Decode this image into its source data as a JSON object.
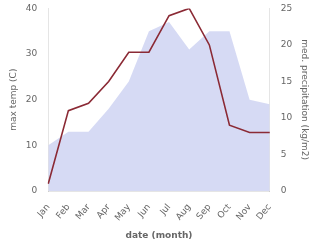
{
  "chart_data": {
    "type": "line",
    "xlabel": "date (month)",
    "ylabel": "max temp (C)",
    "y2label": "med. precipitation (kg/m2)",
    "categories": [
      "Jan",
      "Feb",
      "Mar",
      "Apr",
      "May",
      "Jun",
      "Jul",
      "Aug",
      "Sep",
      "Oct",
      "Nov",
      "Dec"
    ],
    "series": [
      {
        "type": "area",
        "color": "#c8cef0",
        "values": [
          10,
          13,
          13,
          18,
          24,
          35,
          37,
          31,
          35,
          35,
          20,
          19
        ]
      },
      {
        "type": "line",
        "color": "#8b2a35",
        "axis": "y2",
        "values": [
          1,
          11,
          12,
          15,
          19,
          19,
          24,
          25,
          20,
          9,
          8,
          8
        ]
      }
    ],
    "ylim": [
      0,
      40
    ],
    "yticks": [
      0,
      10,
      20,
      30,
      40
    ],
    "y2lim": [
      0,
      25
    ],
    "y2ticks": [
      0,
      5,
      10,
      15,
      20,
      25
    ],
    "grid": false
  }
}
